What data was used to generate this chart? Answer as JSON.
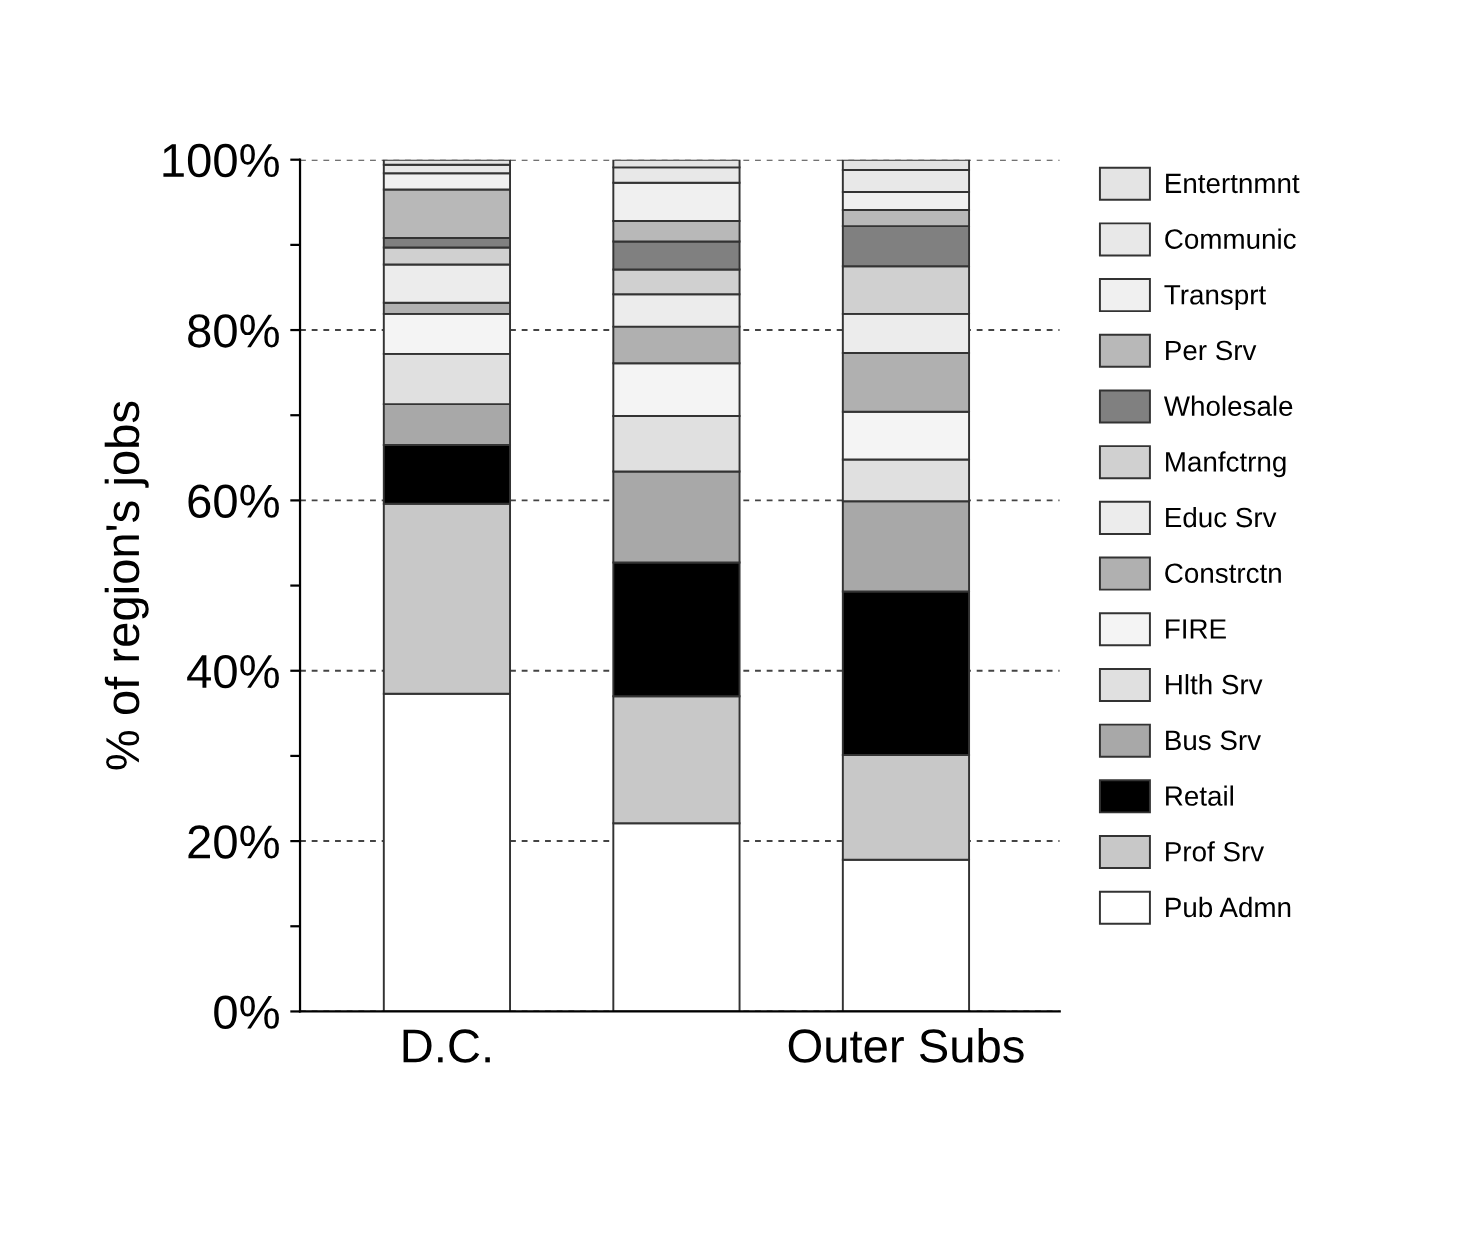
{
  "chart_data": {
    "type": "bar",
    "stacked": true,
    "ylabel": "% of region's jobs",
    "categories": [
      "D.C.",
      null,
      "Outer Subs"
    ],
    "series": [
      {
        "name": "Pub Admn",
        "color": "#ffffff",
        "values": [
          37.3,
          22.1,
          17.8
        ]
      },
      {
        "name": "Prof Srv",
        "color": "#c8c8c8",
        "values": [
          22.3,
          14.9,
          12.3
        ]
      },
      {
        "name": "Retail",
        "color": "#000000",
        "values": [
          6.9,
          15.7,
          19.2
        ]
      },
      {
        "name": "Bus Srv",
        "color": "#a8a8a8",
        "values": [
          4.8,
          10.7,
          10.6
        ]
      },
      {
        "name": "Hlth Srv",
        "color": "#e0e0e0",
        "values": [
          5.9,
          6.5,
          4.9
        ]
      },
      {
        "name": "FIRE",
        "color": "#f4f4f4",
        "values": [
          4.7,
          6.2,
          5.6
        ]
      },
      {
        "name": "Constrctn",
        "color": "#b0b0b0",
        "values": [
          1.3,
          4.3,
          6.9
        ]
      },
      {
        "name": "Educ Srv",
        "color": "#ececec",
        "values": [
          4.5,
          3.8,
          4.6
        ]
      },
      {
        "name": "Manfctrng",
        "color": "#d0d0d0",
        "values": [
          2.0,
          2.9,
          5.6
        ]
      },
      {
        "name": "Wholesale",
        "color": "#808080",
        "values": [
          1.1,
          3.3,
          4.7
        ]
      },
      {
        "name": "Per Srv",
        "color": "#b8b8b8",
        "values": [
          5.7,
          2.4,
          1.9
        ]
      },
      {
        "name": "Transprt",
        "color": "#f0f0f0",
        "values": [
          1.9,
          4.5,
          2.1
        ]
      },
      {
        "name": "Communic",
        "color": "#e8e8e8",
        "values": [
          1.0,
          1.8,
          2.6
        ]
      },
      {
        "name": "Entertnmnt",
        "color": "#e4e4e4",
        "values": [
          0.6,
          0.9,
          1.2
        ]
      }
    ],
    "ylim": [
      0,
      100
    ],
    "yticks": [
      {
        "value": 0,
        "label": "0%"
      },
      {
        "value": 10,
        "label": null
      },
      {
        "value": 20,
        "label": "20%"
      },
      {
        "value": 30,
        "label": null
      },
      {
        "value": 40,
        "label": "40%"
      },
      {
        "value": 50,
        "label": null
      },
      {
        "value": 60,
        "label": "60%"
      },
      {
        "value": 70,
        "label": null
      },
      {
        "value": 80,
        "label": "80%"
      },
      {
        "value": 90,
        "label": null
      },
      {
        "value": 100,
        "label": "100%"
      }
    ],
    "grid": "y",
    "legend": "right"
  }
}
